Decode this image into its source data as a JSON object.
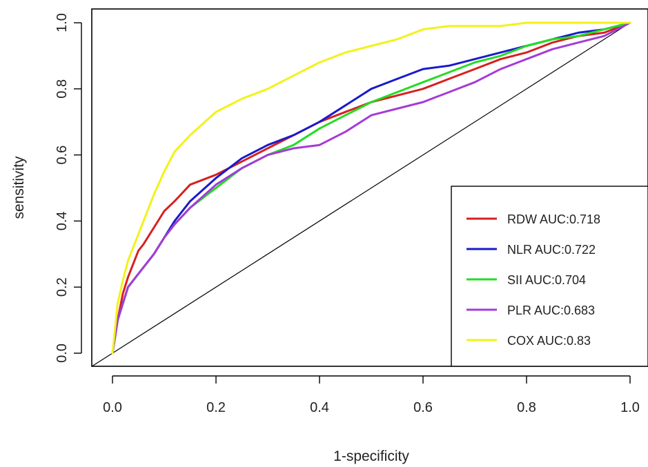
{
  "chart_data": {
    "type": "line",
    "xlabel": "1-specificity",
    "ylabel": "sensitivity",
    "xlim": [
      0.0,
      1.0
    ],
    "ylim": [
      0.0,
      1.0
    ],
    "x_ticks": [
      "0.0",
      "0.2",
      "0.4",
      "0.6",
      "0.8",
      "1.0"
    ],
    "y_ticks": [
      "0.0",
      "0.2",
      "0.4",
      "0.6",
      "0.8",
      "1.0"
    ],
    "grid": false,
    "legend_position": "bottom-right",
    "reference_line": {
      "x": [
        0,
        1
      ],
      "y": [
        0,
        1
      ],
      "color": "#000000"
    },
    "series": [
      {
        "name": "RDW AUC:0.718",
        "color": "#d81f1f",
        "x": [
          0.0,
          0.01,
          0.02,
          0.03,
          0.04,
          0.05,
          0.06,
          0.08,
          0.1,
          0.12,
          0.15,
          0.2,
          0.25,
          0.3,
          0.35,
          0.4,
          0.45,
          0.5,
          0.55,
          0.6,
          0.65,
          0.7,
          0.75,
          0.8,
          0.85,
          0.9,
          0.95,
          1.0
        ],
        "y": [
          0.0,
          0.1,
          0.18,
          0.23,
          0.27,
          0.31,
          0.33,
          0.38,
          0.43,
          0.46,
          0.51,
          0.54,
          0.58,
          0.62,
          0.66,
          0.7,
          0.73,
          0.76,
          0.78,
          0.8,
          0.83,
          0.86,
          0.89,
          0.91,
          0.94,
          0.96,
          0.97,
          1.0
        ]
      },
      {
        "name": "NLR AUC:0.722",
        "color": "#1a1acc",
        "x": [
          0.0,
          0.01,
          0.02,
          0.03,
          0.05,
          0.08,
          0.1,
          0.12,
          0.15,
          0.2,
          0.25,
          0.3,
          0.35,
          0.4,
          0.45,
          0.5,
          0.55,
          0.6,
          0.65,
          0.7,
          0.75,
          0.8,
          0.85,
          0.9,
          0.95,
          1.0
        ],
        "y": [
          0.0,
          0.1,
          0.15,
          0.2,
          0.24,
          0.3,
          0.35,
          0.4,
          0.46,
          0.53,
          0.59,
          0.63,
          0.66,
          0.7,
          0.75,
          0.8,
          0.83,
          0.86,
          0.87,
          0.89,
          0.91,
          0.93,
          0.95,
          0.97,
          0.98,
          1.0
        ]
      },
      {
        "name": "SII AUC:0.704",
        "color": "#22dd22",
        "x": [
          0.0,
          0.01,
          0.02,
          0.03,
          0.05,
          0.08,
          0.1,
          0.12,
          0.15,
          0.2,
          0.25,
          0.3,
          0.35,
          0.4,
          0.45,
          0.5,
          0.55,
          0.6,
          0.65,
          0.7,
          0.75,
          0.8,
          0.85,
          0.9,
          0.95,
          1.0
        ],
        "y": [
          0.0,
          0.1,
          0.15,
          0.2,
          0.24,
          0.3,
          0.35,
          0.39,
          0.44,
          0.5,
          0.56,
          0.6,
          0.63,
          0.68,
          0.72,
          0.76,
          0.79,
          0.82,
          0.85,
          0.88,
          0.9,
          0.93,
          0.95,
          0.96,
          0.98,
          1.0
        ]
      },
      {
        "name": "PLR AUC:0.683",
        "color": "#a53ad8",
        "x": [
          0.0,
          0.01,
          0.02,
          0.03,
          0.05,
          0.08,
          0.1,
          0.12,
          0.15,
          0.2,
          0.25,
          0.3,
          0.35,
          0.4,
          0.45,
          0.5,
          0.55,
          0.6,
          0.65,
          0.7,
          0.75,
          0.8,
          0.85,
          0.9,
          0.95,
          1.0
        ],
        "y": [
          0.0,
          0.1,
          0.15,
          0.2,
          0.24,
          0.3,
          0.35,
          0.39,
          0.44,
          0.51,
          0.56,
          0.6,
          0.62,
          0.63,
          0.67,
          0.72,
          0.74,
          0.76,
          0.79,
          0.82,
          0.86,
          0.89,
          0.92,
          0.94,
          0.96,
          1.0
        ]
      },
      {
        "name": "COX AUC:0.83",
        "color": "#f2f21a",
        "x": [
          0.0,
          0.01,
          0.02,
          0.03,
          0.05,
          0.08,
          0.1,
          0.12,
          0.15,
          0.2,
          0.25,
          0.3,
          0.35,
          0.4,
          0.45,
          0.5,
          0.55,
          0.6,
          0.65,
          0.7,
          0.75,
          0.8,
          0.85,
          0.9,
          0.95,
          1.0
        ],
        "y": [
          0.0,
          0.15,
          0.22,
          0.28,
          0.36,
          0.48,
          0.55,
          0.61,
          0.66,
          0.73,
          0.77,
          0.8,
          0.84,
          0.88,
          0.91,
          0.93,
          0.95,
          0.98,
          0.99,
          0.99,
          0.99,
          1.0,
          1.0,
          1.0,
          1.0,
          1.0
        ]
      }
    ]
  }
}
